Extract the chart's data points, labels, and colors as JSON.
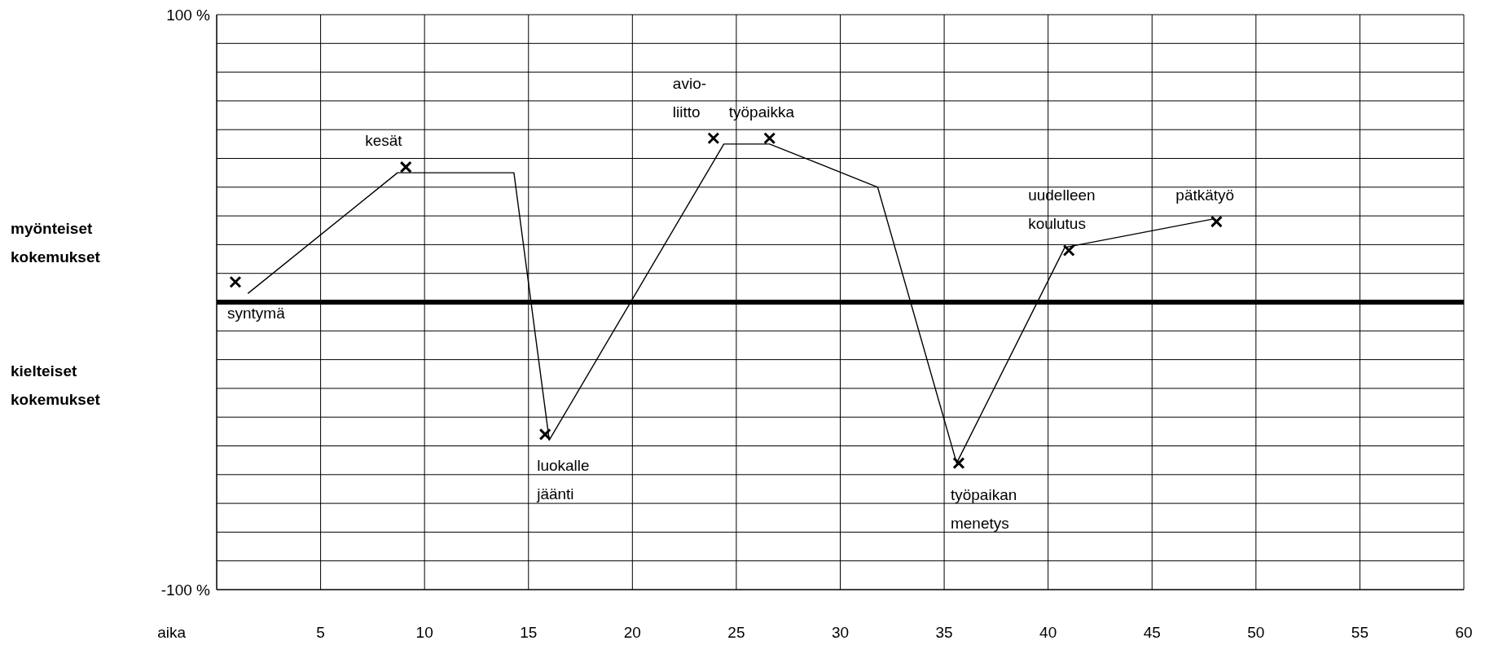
{
  "chart_data": {
    "type": "line",
    "xlabel": "aika",
    "xlim": [
      0,
      60
    ],
    "xticks": [
      5,
      10,
      15,
      20,
      25,
      30,
      35,
      40,
      45,
      50,
      55,
      60
    ],
    "ylim": [
      -100,
      100
    ],
    "yticks": [
      {
        "value": -100,
        "label": "-100 %"
      },
      {
        "value": -90,
        "label": null
      },
      {
        "value": -80,
        "label": null
      },
      {
        "value": -70,
        "label": null
      },
      {
        "value": -60,
        "label": null
      },
      {
        "value": -50,
        "label": null
      },
      {
        "value": -40,
        "label": null
      },
      {
        "value": -30,
        "label": null
      },
      {
        "value": -20,
        "label": null
      },
      {
        "value": -10,
        "label": null
      },
      {
        "value": 0,
        "label": null
      },
      {
        "value": 10,
        "label": null
      },
      {
        "value": 20,
        "label": null
      },
      {
        "value": 30,
        "label": null
      },
      {
        "value": 40,
        "label": null
      },
      {
        "value": 50,
        "label": null
      },
      {
        "value": 60,
        "label": null
      },
      {
        "value": 70,
        "label": null
      },
      {
        "value": 80,
        "label": null
      },
      {
        "value": 90,
        "label": null
      },
      {
        "value": 100,
        "label": "100 %"
      }
    ],
    "grid": true,
    "ref_lines": [
      {
        "axis": "y",
        "value": 0,
        "color": "#000000"
      }
    ],
    "series": [
      {
        "color": "#000000",
        "x": [
          1.5,
          8.7,
          14.3,
          16,
          24.4,
          26.6,
          31.8,
          35.6,
          40.8,
          48
        ],
        "values": [
          3,
          45,
          45,
          -48,
          55,
          55,
          40,
          -56,
          19,
          29
        ]
      },
      {
        "type": "scatter",
        "color": "#000000",
        "marker": "cross",
        "x": [
          0.9,
          9.1,
          15.8,
          23.9,
          26.6,
          35.7,
          41,
          48.1
        ],
        "values": [
          7,
          47,
          -46,
          57,
          57,
          -56,
          18,
          28
        ]
      }
    ],
    "annotations": [
      "myönteiset\nkokemukset",
      "kielteiset\nkokemukset",
      {
        "text": "syntymä",
        "x": 0.9,
        "y": 7
      },
      {
        "text": "kesät",
        "x": 9.1,
        "y": 47
      },
      {
        "text": "luokalle\njäänti",
        "x": 15.8,
        "y": -46
      },
      {
        "text": "avio-\nliitto",
        "x": 23.9,
        "y": 57
      },
      {
        "text": "työpaikka",
        "x": 26.6,
        "y": 57
      },
      {
        "text": "työpaikan\nmenetys",
        "x": 35.7,
        "y": -56
      },
      {
        "text": "uudelleen\nkoulutus",
        "x": 41,
        "y": 18
      },
      {
        "text": "pätkätyö",
        "x": 48.1,
        "y": 28
      }
    ]
  }
}
